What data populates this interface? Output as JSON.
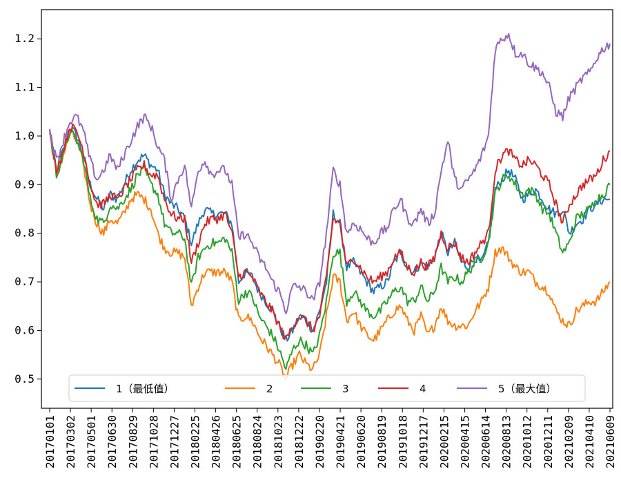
{
  "chart_data": {
    "type": "line",
    "title": "",
    "xlabel": "",
    "ylabel": "",
    "ylim": [
      0.44,
      1.26
    ],
    "yticks": [
      0.5,
      0.6,
      0.7,
      0.8,
      0.9,
      1.0,
      1.1,
      1.2
    ],
    "ytick_labels": [
      "0.5",
      "0.6",
      "0.7",
      "0.8",
      "0.9",
      "1.0",
      "1.1",
      "1.2"
    ],
    "xtick_labels": [
      "20170101",
      "20170302",
      "20170501",
      "20170630",
      "20170829",
      "20171028",
      "20171227",
      "20180225",
      "20180426",
      "20180625",
      "20180824",
      "20181023",
      "20181222",
      "20190220",
      "20190421",
      "20190620",
      "20190819",
      "20191018",
      "20191217",
      "20200215",
      "20200415",
      "20200614",
      "20200813",
      "20201012",
      "20201211",
      "20210209",
      "20210410",
      "20210609"
    ],
    "grid": false,
    "legend_position": "bottom-center",
    "colors": {
      "1": "#1f77b4",
      "2": "#ff7f0e",
      "3": "#2ca02c",
      "4": "#d62728",
      "5": "#9467bd"
    },
    "series": [
      {
        "name": "1（最低值）",
        "values": [
          1.01,
          0.93,
          0.97,
          1.02,
          1.0,
          0.96,
          0.9,
          0.87,
          0.85,
          0.88,
          0.87,
          0.9,
          0.93,
          0.95,
          0.96,
          0.94,
          0.93,
          0.88,
          0.86,
          0.85,
          0.83,
          0.78,
          0.82,
          0.85,
          0.84,
          0.84,
          0.84,
          0.82,
          0.7,
          0.72,
          0.71,
          0.68,
          0.66,
          0.64,
          0.61,
          0.58,
          0.6,
          0.63,
          0.62,
          0.6,
          0.64,
          0.7,
          0.84,
          0.82,
          0.73,
          0.74,
          0.72,
          0.7,
          0.68,
          0.69,
          0.7,
          0.74,
          0.76,
          0.73,
          0.72,
          0.74,
          0.73,
          0.75,
          0.8,
          0.76,
          0.78,
          0.74,
          0.73,
          0.75,
          0.74,
          0.78,
          0.89,
          0.91,
          0.93,
          0.91,
          0.87,
          0.88,
          0.89,
          0.87,
          0.85,
          0.84,
          0.85,
          0.8,
          0.82,
          0.83,
          0.85,
          0.86,
          0.87,
          0.87
        ]
      },
      {
        "name": "2",
        "values": [
          1.01,
          0.92,
          0.96,
          1.01,
          0.99,
          0.94,
          0.86,
          0.82,
          0.8,
          0.83,
          0.82,
          0.84,
          0.87,
          0.88,
          0.87,
          0.85,
          0.8,
          0.77,
          0.76,
          0.76,
          0.75,
          0.65,
          0.69,
          0.72,
          0.72,
          0.72,
          0.72,
          0.7,
          0.62,
          0.63,
          0.62,
          0.59,
          0.57,
          0.55,
          0.53,
          0.5,
          0.53,
          0.55,
          0.53,
          0.52,
          0.55,
          0.63,
          0.71,
          0.7,
          0.62,
          0.64,
          0.61,
          0.59,
          0.58,
          0.6,
          0.62,
          0.64,
          0.65,
          0.62,
          0.6,
          0.63,
          0.59,
          0.61,
          0.65,
          0.62,
          0.61,
          0.61,
          0.61,
          0.64,
          0.66,
          0.69,
          0.76,
          0.77,
          0.75,
          0.73,
          0.72,
          0.72,
          0.7,
          0.69,
          0.68,
          0.64,
          0.62,
          0.61,
          0.64,
          0.65,
          0.66,
          0.66,
          0.68,
          0.7
        ]
      },
      {
        "name": "3",
        "values": [
          1.01,
          0.92,
          0.96,
          1.01,
          0.99,
          0.95,
          0.87,
          0.83,
          0.82,
          0.86,
          0.85,
          0.87,
          0.89,
          0.92,
          0.93,
          0.9,
          0.88,
          0.82,
          0.8,
          0.8,
          0.79,
          0.69,
          0.75,
          0.77,
          0.78,
          0.78,
          0.79,
          0.76,
          0.66,
          0.68,
          0.67,
          0.63,
          0.61,
          0.59,
          0.56,
          0.52,
          0.56,
          0.58,
          0.57,
          0.55,
          0.59,
          0.66,
          0.76,
          0.76,
          0.66,
          0.68,
          0.66,
          0.64,
          0.63,
          0.64,
          0.66,
          0.68,
          0.69,
          0.66,
          0.66,
          0.69,
          0.66,
          0.68,
          0.73,
          0.7,
          0.71,
          0.7,
          0.72,
          0.74,
          0.75,
          0.78,
          0.88,
          0.91,
          0.92,
          0.9,
          0.88,
          0.89,
          0.88,
          0.85,
          0.84,
          0.8,
          0.76,
          0.78,
          0.83,
          0.84,
          0.85,
          0.87,
          0.88,
          0.9
        ]
      },
      {
        "name": "4",
        "values": [
          1.01,
          0.93,
          0.97,
          1.02,
          1.01,
          0.97,
          0.9,
          0.86,
          0.86,
          0.88,
          0.87,
          0.89,
          0.91,
          0.93,
          0.94,
          0.92,
          0.92,
          0.87,
          0.84,
          0.83,
          0.83,
          0.74,
          0.78,
          0.82,
          0.83,
          0.83,
          0.84,
          0.8,
          0.71,
          0.72,
          0.71,
          0.68,
          0.66,
          0.64,
          0.61,
          0.58,
          0.61,
          0.63,
          0.62,
          0.6,
          0.63,
          0.71,
          0.83,
          0.82,
          0.73,
          0.75,
          0.73,
          0.71,
          0.7,
          0.71,
          0.72,
          0.75,
          0.76,
          0.73,
          0.72,
          0.74,
          0.73,
          0.75,
          0.8,
          0.77,
          0.78,
          0.75,
          0.74,
          0.76,
          0.78,
          0.8,
          0.93,
          0.96,
          0.97,
          0.95,
          0.94,
          0.95,
          0.94,
          0.92,
          0.9,
          0.86,
          0.82,
          0.86,
          0.88,
          0.9,
          0.91,
          0.92,
          0.95,
          0.97
        ]
      },
      {
        "name": "5（最大值）",
        "values": [
          1.01,
          0.95,
          0.99,
          1.03,
          1.04,
          1.01,
          0.95,
          0.91,
          0.93,
          0.96,
          0.93,
          0.96,
          0.99,
          1.02,
          1.04,
          1.02,
          0.98,
          0.95,
          0.87,
          0.91,
          0.94,
          0.85,
          0.93,
          0.95,
          0.92,
          0.93,
          0.93,
          0.9,
          0.79,
          0.8,
          0.78,
          0.75,
          0.73,
          0.7,
          0.68,
          0.64,
          0.69,
          0.69,
          0.68,
          0.66,
          0.7,
          0.8,
          0.93,
          0.9,
          0.8,
          0.82,
          0.81,
          0.79,
          0.78,
          0.8,
          0.81,
          0.85,
          0.87,
          0.83,
          0.82,
          0.85,
          0.82,
          0.84,
          0.93,
          0.99,
          0.91,
          0.89,
          0.91,
          0.93,
          0.96,
          1.0,
          1.18,
          1.2,
          1.21,
          1.17,
          1.17,
          1.15,
          1.14,
          1.13,
          1.1,
          1.05,
          1.04,
          1.08,
          1.1,
          1.12,
          1.13,
          1.16,
          1.18,
          1.19
        ]
      }
    ],
    "legend": [
      {
        "label": "1（最低值）",
        "color": "#1f77b4"
      },
      {
        "label": "2",
        "color": "#ff7f0e"
      },
      {
        "label": "3",
        "color": "#2ca02c"
      },
      {
        "label": "4",
        "color": "#d62728"
      },
      {
        "label": "5（最大值）",
        "color": "#9467bd"
      }
    ]
  }
}
